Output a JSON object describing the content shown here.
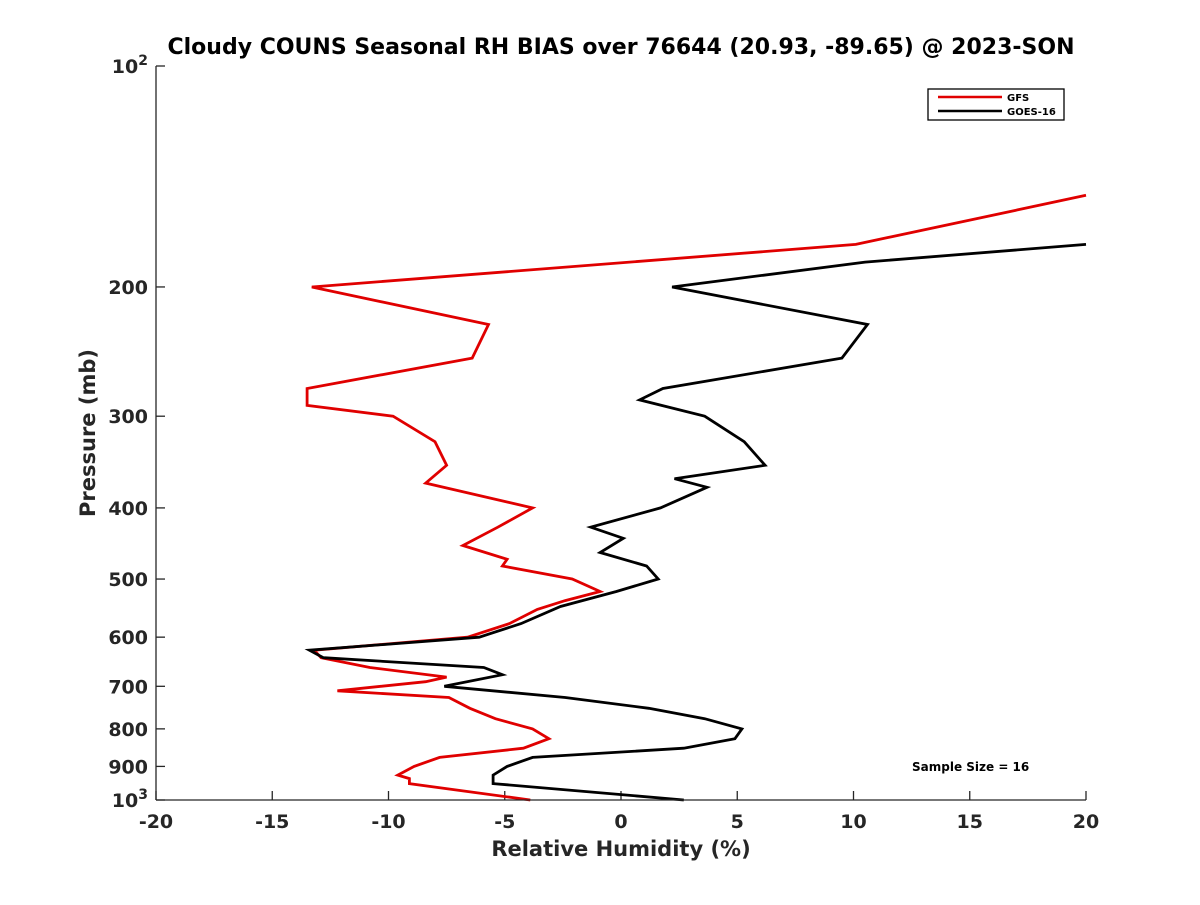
{
  "chart_data": {
    "type": "line",
    "title": "Cloudy COUNS Seasonal RH BIAS over 76644 (20.93, -89.65) @ 2023-SON",
    "xlabel": "Relative Humidity (%)",
    "ylabel": "Pressure (mb)",
    "xlim": [
      -20,
      20
    ],
    "ylim": [
      100,
      1000
    ],
    "yscale": "log",
    "y_reversed": true,
    "xticks": [
      -20,
      -15,
      -10,
      -5,
      0,
      5,
      10,
      15,
      20
    ],
    "xtick_labels": [
      "-20",
      "-15",
      "-10",
      "-5",
      "0",
      "5",
      "10",
      "15",
      "20"
    ],
    "yticks": [
      100,
      200,
      300,
      400,
      500,
      600,
      700,
      800,
      900,
      1000
    ],
    "ytick_labels": [
      {
        "base": "10",
        "exp": "2"
      },
      {
        "base": "200"
      },
      {
        "base": "300"
      },
      {
        "base": "400"
      },
      {
        "base": "500"
      },
      {
        "base": "600"
      },
      {
        "base": "700"
      },
      {
        "base": "800"
      },
      {
        "base": "900"
      },
      {
        "base": "10",
        "exp": "3"
      }
    ],
    "legend_position": "top-right",
    "annotation": "Sample Size = 16",
    "series": [
      {
        "name": "GFS",
        "color": "#e00000",
        "points": [
          [
            20.0,
            150
          ],
          [
            10.1,
            175
          ],
          [
            -13.3,
            200
          ],
          [
            -5.7,
            225
          ],
          [
            -6.4,
            250
          ],
          [
            -13.5,
            275
          ],
          [
            -13.5,
            290
          ],
          [
            -9.8,
            300
          ],
          [
            -8.0,
            325
          ],
          [
            -7.5,
            350
          ],
          [
            -8.4,
            370
          ],
          [
            -3.8,
            400
          ],
          [
            -5.3,
            425
          ],
          [
            -6.8,
            450
          ],
          [
            -4.9,
            470
          ],
          [
            -5.1,
            480
          ],
          [
            -2.1,
            500
          ],
          [
            -0.9,
            520
          ],
          [
            -2.4,
            535
          ],
          [
            -3.6,
            550
          ],
          [
            -4.8,
            575
          ],
          [
            -6.6,
            600
          ],
          [
            -13.2,
            625
          ],
          [
            -12.9,
            640
          ],
          [
            -10.8,
            660
          ],
          [
            -7.5,
            680
          ],
          [
            -8.4,
            690
          ],
          [
            -12.2,
            710
          ],
          [
            -7.4,
            725
          ],
          [
            -6.5,
            750
          ],
          [
            -5.4,
            775
          ],
          [
            -3.8,
            800
          ],
          [
            -3.1,
            825
          ],
          [
            -4.2,
            850
          ],
          [
            -7.8,
            875
          ],
          [
            -8.9,
            900
          ],
          [
            -9.6,
            925
          ],
          [
            -9.1,
            935
          ],
          [
            -9.1,
            950
          ],
          [
            -3.9,
            1000
          ]
        ]
      },
      {
        "name": "GOES-16",
        "color": "#000000",
        "points": [
          [
            20.0,
            175
          ],
          [
            10.5,
            185
          ],
          [
            2.2,
            200
          ],
          [
            10.6,
            225
          ],
          [
            9.5,
            250
          ],
          [
            1.8,
            275
          ],
          [
            0.8,
            285
          ],
          [
            3.6,
            300
          ],
          [
            5.3,
            325
          ],
          [
            6.2,
            350
          ],
          [
            2.3,
            365
          ],
          [
            3.7,
            375
          ],
          [
            1.7,
            400
          ],
          [
            -1.3,
            425
          ],
          [
            0.1,
            440
          ],
          [
            -0.9,
            460
          ],
          [
            1.1,
            480
          ],
          [
            1.6,
            500
          ],
          [
            -0.2,
            520
          ],
          [
            -2.6,
            545
          ],
          [
            -4.3,
            575
          ],
          [
            -6.1,
            600
          ],
          [
            -13.4,
            625
          ],
          [
            -12.8,
            640
          ],
          [
            -5.9,
            660
          ],
          [
            -5.1,
            675
          ],
          [
            -7.6,
            700
          ],
          [
            -2.4,
            725
          ],
          [
            1.2,
            750
          ],
          [
            3.6,
            775
          ],
          [
            5.2,
            800
          ],
          [
            4.9,
            825
          ],
          [
            2.7,
            850
          ],
          [
            -3.8,
            875
          ],
          [
            -4.9,
            900
          ],
          [
            -5.5,
            925
          ],
          [
            -5.5,
            950
          ],
          [
            2.7,
            1000
          ]
        ]
      }
    ]
  }
}
